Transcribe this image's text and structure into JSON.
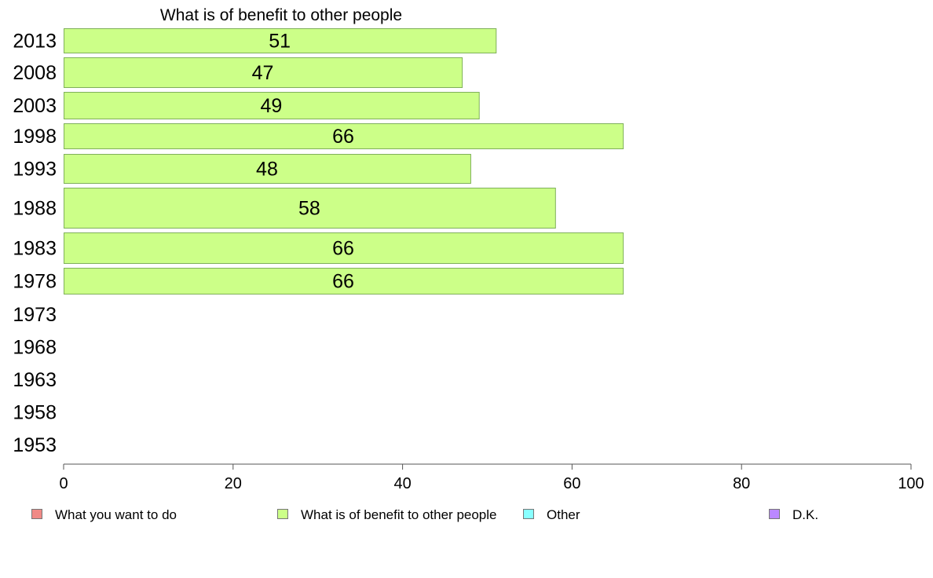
{
  "chart_data": {
    "type": "bar",
    "orientation": "horizontal",
    "title": "What is of benefit to other people",
    "xlabel": "",
    "ylabel": "",
    "xlim": [
      0,
      100
    ],
    "x_ticks": [
      "0",
      "20",
      "40",
      "60",
      "80",
      "100"
    ],
    "categories": [
      "2013",
      "2008",
      "2003",
      "1998",
      "1993",
      "1988",
      "1983",
      "1978",
      "1973",
      "1968",
      "1963",
      "1958",
      "1953"
    ],
    "series": [
      {
        "name": "What is of benefit to other people",
        "color": "#ccff88",
        "values": [
          51,
          47,
          49,
          66,
          48,
          58,
          66,
          66,
          null,
          null,
          null,
          null,
          null
        ],
        "labels": [
          "51",
          "47",
          "49",
          "66",
          "48",
          "58",
          "66",
          "66",
          "",
          "",
          "",
          "",
          ""
        ]
      }
    ],
    "legend": {
      "placement": "bottom",
      "items": [
        {
          "label": "What you want to do",
          "color": "#f08a86"
        },
        {
          "label": "What is of benefit to other people",
          "color": "#ccff88"
        },
        {
          "label": "Other",
          "color": "#88ffff"
        },
        {
          "label": "D.K.",
          "color": "#bb88ff"
        }
      ]
    },
    "grid": false
  }
}
